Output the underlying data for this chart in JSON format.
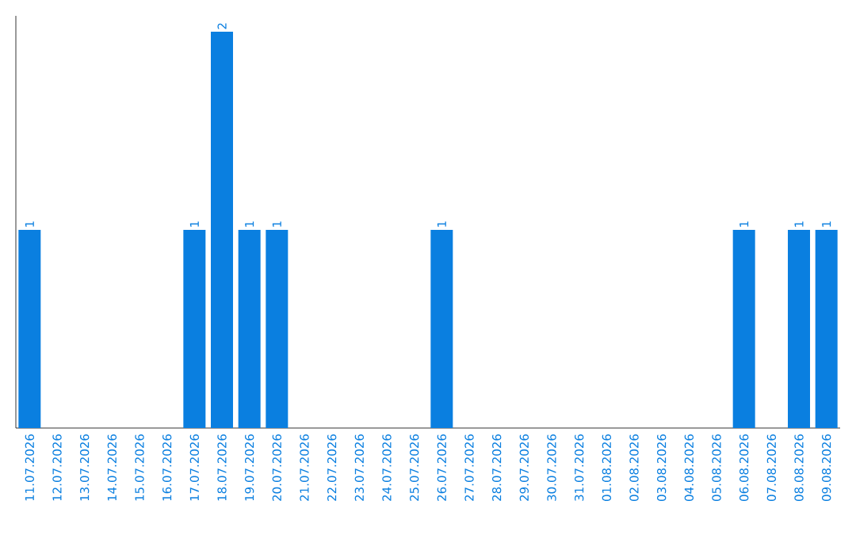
{
  "chart_data": {
    "type": "bar",
    "categories": [
      "11.07.2026",
      "12.07.2026",
      "13.07.2026",
      "14.07.2026",
      "15.07.2026",
      "16.07.2026",
      "17.07.2026",
      "18.07.2026",
      "19.07.2026",
      "20.07.2026",
      "21.07.2026",
      "22.07.2026",
      "23.07.2026",
      "24.07.2026",
      "25.07.2026",
      "26.07.2026",
      "27.07.2026",
      "28.07.2026",
      "29.07.2026",
      "30.07.2026",
      "31.07.2026",
      "01.08.2026",
      "02.08.2026",
      "03.08.2026",
      "04.08.2026",
      "05.08.2026",
      "06.08.2026",
      "07.08.2026",
      "08.08.2026",
      "09.08.2026"
    ],
    "values": [
      1,
      0,
      0,
      0,
      0,
      0,
      1,
      2,
      1,
      1,
      0,
      0,
      0,
      0,
      0,
      1,
      0,
      0,
      0,
      0,
      0,
      0,
      0,
      0,
      0,
      0,
      1,
      0,
      1,
      1
    ],
    "value_labels": [
      "1",
      null,
      null,
      null,
      null,
      null,
      "1",
      "2",
      "1",
      "1",
      null,
      null,
      null,
      null,
      null,
      "1",
      null,
      null,
      null,
      null,
      null,
      null,
      null,
      null,
      null,
      null,
      "1",
      null,
      "1",
      "1"
    ],
    "color": "#0a7fe0"
  }
}
